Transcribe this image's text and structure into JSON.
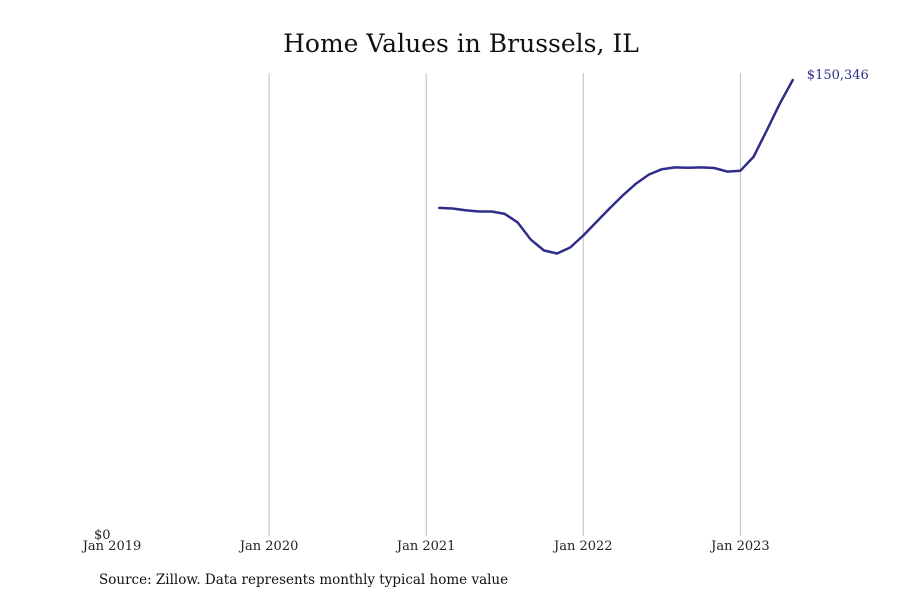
{
  "chart_data": {
    "type": "line",
    "title": "Home Values in Brussels, IL",
    "xlabel": "",
    "ylabel": "",
    "x_ticks": [
      "Jan 2019",
      "Jan 2020",
      "Jan 2021",
      "Jan 2022",
      "Jan 2023"
    ],
    "y_tick_labels": [
      "$0"
    ],
    "xlim": [
      "2019-01",
      "2023-12"
    ],
    "ylim": [
      0,
      150346
    ],
    "grid": "vertical",
    "line_color": "#2e2e8a",
    "end_label": "$150,346",
    "series": [
      {
        "x": [
          "2021-02",
          "2021-03",
          "2021-04",
          "2021-05",
          "2021-06",
          "2021-07",
          "2021-08",
          "2021-09",
          "2021-10",
          "2021-11",
          "2021-12",
          "2022-01",
          "2022-02",
          "2022-03",
          "2022-04",
          "2022-05",
          "2022-06",
          "2022-07",
          "2022-08",
          "2022-09",
          "2022-10",
          "2022-11",
          "2022-12",
          "2023-01",
          "2023-02",
          "2023-03",
          "2023-04",
          "2023-05"
        ],
        "values": [
          107700,
          107500,
          106900,
          106500,
          106500,
          105700,
          102800,
          97100,
          93500,
          92500,
          94500,
          98500,
          103000,
          107500,
          111800,
          115700,
          118800,
          120600,
          121200,
          121100,
          121200,
          121000,
          119800,
          120100,
          124700,
          133400,
          142400,
          150346
        ]
      }
    ]
  },
  "source_text": "Source: Zillow. Data represents monthly typical home value"
}
